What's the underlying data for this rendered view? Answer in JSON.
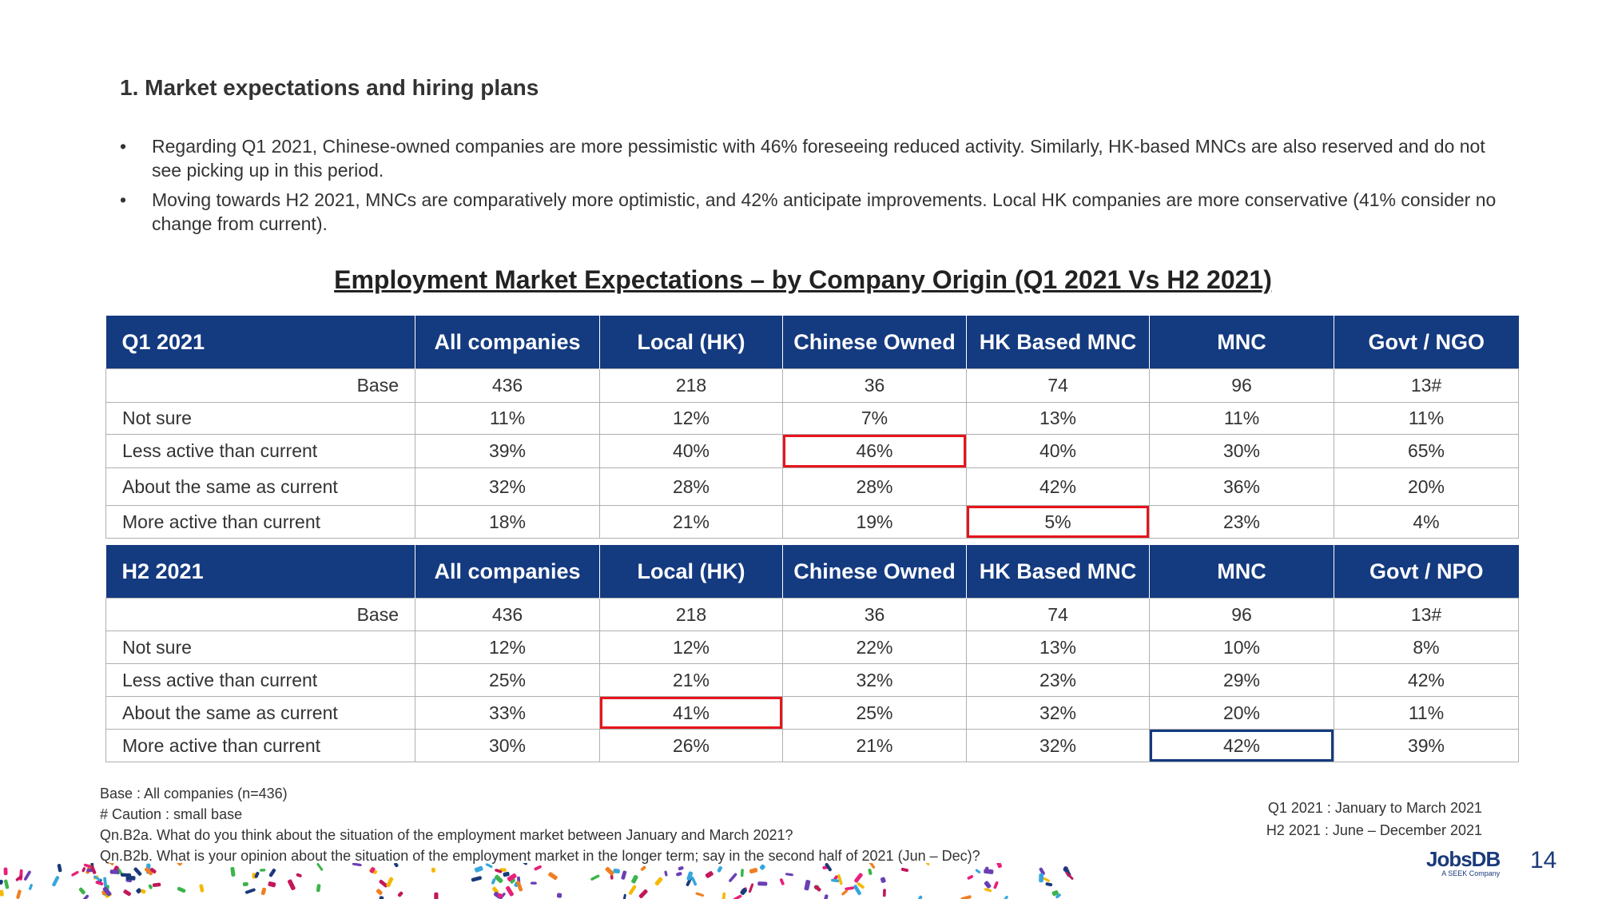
{
  "section_title": "1. Market expectations and hiring plans",
  "bullets": [
    "Regarding Q1 2021, Chinese-owned companies are more pessimistic with 46% foreseeing reduced activity. Similarly, HK-based MNCs are also reserved and do not see picking up in this period.",
    "Moving towards H2 2021, MNCs are comparatively more optimistic, and 42% anticipate improvements. Local HK companies are more conservative (41% consider no change from current)."
  ],
  "bullet_symbol": "•",
  "table_title": "Employment Market Expectations – by Company Origin (Q1 2021 Vs H2 2021)",
  "colors": {
    "header": "#143a80",
    "highlight_red": "#e8141c",
    "highlight_blue": "#143a80"
  },
  "tables": [
    {
      "headers": [
        "Q1 2021",
        "All companies",
        "Local (HK)",
        "Chinese Owned",
        "HK Based MNC",
        "MNC",
        "Govt / NGO"
      ],
      "rows": [
        {
          "label": "Base",
          "values": [
            "436",
            "218",
            "36",
            "74",
            "96",
            "13#"
          ]
        },
        {
          "label": "Not sure",
          "values": [
            "11%",
            "12%",
            "7%",
            "13%",
            "11%",
            "11%"
          ]
        },
        {
          "label": "Less active than current",
          "values": [
            "39%",
            "40%",
            "46%",
            "40%",
            "30%",
            "65%"
          ]
        },
        {
          "label": "About the same as current",
          "values": [
            "32%",
            "28%",
            "28%",
            "42%",
            "36%",
            "20%"
          ]
        },
        {
          "label": "More active than current",
          "values": [
            "18%",
            "21%",
            "19%",
            "5%",
            "23%",
            "4%"
          ]
        }
      ],
      "highlights": [
        {
          "row": 2,
          "col": 2,
          "color": "red"
        },
        {
          "row": 4,
          "col": 3,
          "color": "red"
        }
      ]
    },
    {
      "headers": [
        "H2 2021",
        "All companies",
        "Local (HK)",
        "Chinese Owned",
        "HK Based MNC",
        "MNC",
        "Govt / NPO"
      ],
      "rows": [
        {
          "label": "Base",
          "values": [
            "436",
            "218",
            "36",
            "74",
            "96",
            "13#"
          ]
        },
        {
          "label": "Not sure",
          "values": [
            "12%",
            "12%",
            "22%",
            "13%",
            "10%",
            "8%"
          ]
        },
        {
          "label": "Less active than current",
          "values": [
            "25%",
            "21%",
            "32%",
            "23%",
            "29%",
            "42%"
          ]
        },
        {
          "label": "About the same as current",
          "values": [
            "33%",
            "41%",
            "25%",
            "32%",
            "20%",
            "11%"
          ]
        },
        {
          "label": "More active than current",
          "values": [
            "30%",
            "26%",
            "21%",
            "32%",
            "42%",
            "39%"
          ]
        }
      ],
      "highlights": [
        {
          "row": 3,
          "col": 1,
          "color": "red"
        },
        {
          "row": 4,
          "col": 4,
          "color": "blue"
        }
      ]
    }
  ],
  "footnotes": [
    "Base : All companies  (n=436)",
    "# Caution : small base",
    "Qn.B2a. What do you think about the situation of the employment market between January and March 2021?",
    "Qn.B2b. What is your opinion about the situation of the employment market in the longer term; say in the second half of 2021 (Jun – Dec)?"
  ],
  "period_notes": [
    "Q1 2021 : January to March 2021",
    "H2 2021 : June – December 2021"
  ],
  "logo": {
    "name": "JobsDB",
    "tagline": "A SEEK Company"
  },
  "page_number": "14"
}
